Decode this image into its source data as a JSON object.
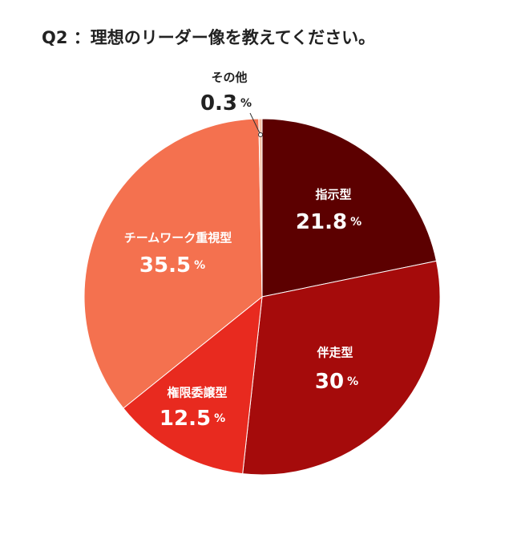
{
  "chart_data": {
    "type": "pie",
    "title": "Q2 ：理想のリーダー像を教えてください。",
    "categories": [
      "指示型",
      "伴走型",
      "権限委譲型",
      "チームワーク重視型",
      "その他"
    ],
    "values": [
      21.8,
      30,
      12.5,
      35.5,
      0.3
    ],
    "unit": "%",
    "colors": [
      "#5c0000",
      "#a50b0b",
      "#e82a1f",
      "#f4714f",
      "#f6c4a8"
    ],
    "start": "top",
    "direction": "clockwise"
  }
}
